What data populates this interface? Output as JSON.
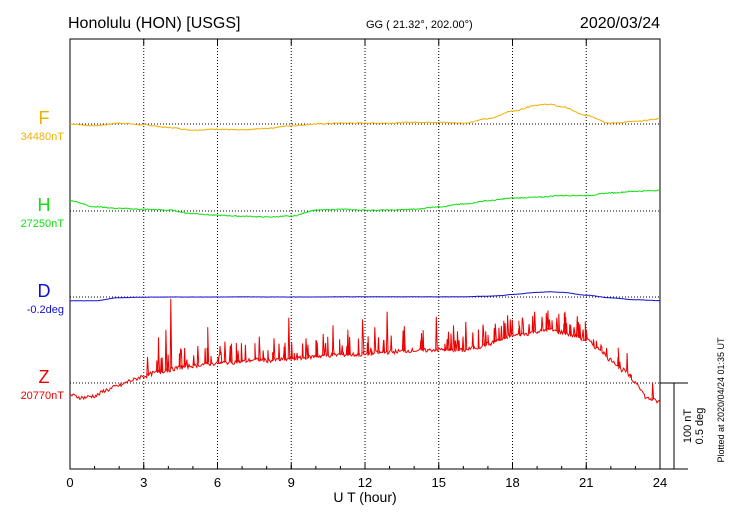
{
  "header": {
    "station": "Honolulu (HON)  [USGS]",
    "coords": "GG ( 21.32°, 202.00°)",
    "date": "2020/03/24"
  },
  "chart_data": {
    "type": "line",
    "xlabel": "U T (hour)",
    "xlim": [
      0,
      24
    ],
    "xticks": [
      "0",
      "3",
      "6",
      "9",
      "12",
      "15",
      "18",
      "21",
      "24"
    ],
    "grid": true,
    "scale_bar": {
      "label1": "100 nT",
      "label2": "0.5 deg"
    },
    "plotted_note": "Plotted at 2020/04/24 01:35 UT",
    "series": [
      {
        "name": "F",
        "baseline_label": "34480nT",
        "color": "#f0b000",
        "x": [
          0,
          1,
          2,
          3,
          4,
          5,
          6,
          7,
          8,
          9,
          10,
          11,
          12,
          13,
          14,
          15,
          16,
          17,
          18,
          19,
          19.5,
          20,
          21,
          22,
          23,
          24
        ],
        "y": [
          34480,
          34478,
          34481,
          34479,
          34476,
          34473,
          34474,
          34473,
          34475,
          34478,
          34480,
          34481,
          34481,
          34481,
          34482,
          34482,
          34481,
          34486,
          34495,
          34502,
          34503,
          34500,
          34490,
          34481,
          34483,
          34486
        ]
      },
      {
        "name": "H",
        "baseline_label": "27250nT",
        "color": "#10e010",
        "x": [
          0,
          1,
          2,
          3,
          4,
          5,
          6,
          7,
          8,
          9,
          10,
          11,
          12,
          13,
          14,
          15,
          16,
          17,
          18,
          19,
          20,
          21,
          22,
          23,
          24
        ],
        "y": [
          27262,
          27255,
          27253,
          27252,
          27251,
          27247,
          27245,
          27244,
          27243,
          27244,
          27251,
          27252,
          27251,
          27251,
          27252,
          27255,
          27258,
          27262,
          27265,
          27266,
          27268,
          27268,
          27271,
          27273,
          27274
        ]
      },
      {
        "name": "D",
        "baseline_label": "-0.2deg",
        "color": "#1010d0",
        "x": [
          0,
          1,
          2,
          3,
          4,
          5,
          6,
          7,
          8,
          9,
          10,
          11,
          12,
          13,
          14,
          15,
          16,
          17,
          17.5,
          18,
          19,
          19.5,
          20,
          21,
          22,
          23,
          24
        ],
        "y": [
          -0.222,
          -0.222,
          -0.204,
          -0.201,
          -0.2,
          -0.2,
          -0.2,
          -0.199,
          -0.2,
          -0.2,
          -0.2,
          -0.199,
          -0.199,
          -0.199,
          -0.199,
          -0.199,
          -0.199,
          -0.195,
          -0.192,
          -0.185,
          -0.173,
          -0.17,
          -0.173,
          -0.189,
          -0.205,
          -0.216,
          -0.221
        ]
      },
      {
        "name": "Z",
        "baseline_label": "20770nT",
        "color": "#ee0000",
        "x": [
          0,
          0.5,
          1,
          1.5,
          2,
          2.5,
          3,
          3.5,
          4,
          4.5,
          5,
          5.5,
          6,
          6.5,
          7,
          7.5,
          8,
          8.5,
          9,
          9.5,
          10,
          10.5,
          11,
          11.5,
          12,
          12.5,
          13,
          13.5,
          14,
          14.5,
          15,
          15.5,
          16,
          16.5,
          17,
          17.5,
          18,
          18.5,
          19,
          19.5,
          20,
          20.5,
          21,
          21.5,
          22,
          22.5,
          23,
          23.5,
          24
        ],
        "y": [
          20756,
          20753,
          20755,
          20762,
          20767,
          20773,
          20778,
          20782,
          20785,
          20788,
          20790,
          20792,
          20793,
          20794,
          20795,
          20797,
          20796,
          20797,
          20798,
          20799,
          20801,
          20802,
          20803,
          20803,
          20803,
          20805,
          20806,
          20807,
          20808,
          20808,
          20809,
          20808,
          20808,
          20811,
          20815,
          20820,
          20825,
          20827,
          20830,
          20832,
          20829,
          20825,
          20820,
          20810,
          20797,
          20785,
          20771,
          20752,
          20748
        ],
        "spikes": [
          {
            "x": 3.9,
            "y": 20832
          },
          {
            "x": 4.1,
            "y": 20868
          },
          {
            "x": 4.5,
            "y": 20810
          },
          {
            "x": 3.6,
            "y": 20823
          },
          {
            "x": 5.6,
            "y": 20835
          },
          {
            "x": 5.2,
            "y": 20813
          },
          {
            "x": 6.3,
            "y": 20818
          },
          {
            "x": 7.7,
            "y": 20824
          },
          {
            "x": 8.3,
            "y": 20822
          },
          {
            "x": 8.9,
            "y": 20846
          },
          {
            "x": 9.6,
            "y": 20822
          },
          {
            "x": 10.3,
            "y": 20827
          },
          {
            "x": 10.7,
            "y": 20837
          },
          {
            "x": 11.3,
            "y": 20832
          },
          {
            "x": 11.9,
            "y": 20844
          },
          {
            "x": 12.4,
            "y": 20835
          },
          {
            "x": 12.9,
            "y": 20853
          },
          {
            "x": 13.6,
            "y": 20836
          },
          {
            "x": 14.3,
            "y": 20828
          },
          {
            "x": 14.9,
            "y": 20847
          },
          {
            "x": 15.6,
            "y": 20837
          },
          {
            "x": 16.1,
            "y": 20841
          },
          {
            "x": 16.8,
            "y": 20838
          },
          {
            "x": 17.3,
            "y": 20839
          },
          {
            "x": 17.8,
            "y": 20849
          },
          {
            "x": 18.4,
            "y": 20846
          },
          {
            "x": 18.9,
            "y": 20853
          },
          {
            "x": 19.2,
            "y": 20847
          },
          {
            "x": 19.5,
            "y": 20844
          },
          {
            "x": 19.8,
            "y": 20846
          },
          {
            "x": 20.5,
            "y": 20835
          },
          {
            "x": 21.0,
            "y": 20832
          },
          {
            "x": 21.6,
            "y": 20814
          },
          {
            "x": 22.3,
            "y": 20811
          },
          {
            "x": 22.8,
            "y": 20780
          },
          {
            "x": 23.7,
            "y": 20770
          }
        ]
      }
    ]
  }
}
